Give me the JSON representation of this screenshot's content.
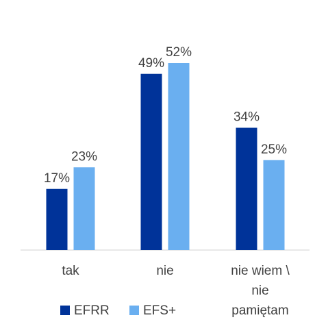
{
  "chart_data": {
    "type": "bar",
    "categories": [
      "tak",
      "nie",
      "nie wiem \\ nie pamiętam"
    ],
    "category_lines": [
      [
        "tak"
      ],
      [
        "nie"
      ],
      [
        "nie wiem \\",
        "nie",
        "pamiętam"
      ]
    ],
    "series": [
      {
        "name": "EFRR",
        "values": [
          17,
          49,
          34
        ],
        "labels": [
          "17%",
          "49%",
          "34%"
        ],
        "color": "#003399"
      },
      {
        "name": "EFS+",
        "values": [
          23,
          52,
          25
        ],
        "labels": [
          "23%",
          "52%",
          "25%"
        ],
        "color": "#6AAFF0"
      }
    ],
    "ylim": [
      0,
      60
    ],
    "grid": false,
    "legend_position": "bottom"
  }
}
